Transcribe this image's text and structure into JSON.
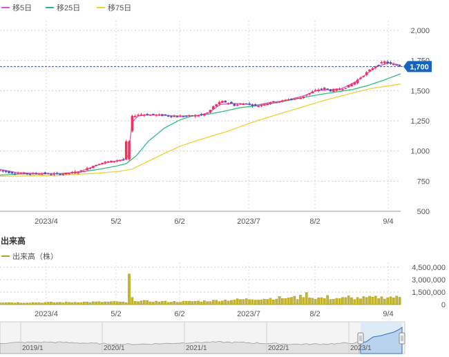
{
  "chart_data": [
    {
      "type": "candlestick",
      "legend": [
        {
          "name": "移5日",
          "color": "#d65ad6"
        },
        {
          "name": "移25日",
          "color": "#2bbf7e"
        },
        {
          "name": "移75日",
          "color": "#f2cf33"
        }
      ],
      "legend_placement": "top-left",
      "x_ticks": [
        "2023/4",
        "5/2",
        "6/2",
        "2023/7",
        "8/2",
        "9/4"
      ],
      "y_ticks": [
        "2,000",
        "1,750",
        "1,500",
        "1,250",
        "1,000",
        "750",
        "500"
      ],
      "ylim": [
        500,
        2000
      ],
      "grid": true,
      "current_price": "1,700",
      "price_path": [
        [
          0,
          840
        ],
        [
          5,
          820
        ],
        [
          10,
          815
        ],
        [
          15,
          812
        ],
        [
          20,
          815
        ],
        [
          25,
          810
        ],
        [
          30,
          808
        ],
        [
          35,
          818
        ],
        [
          38,
          825
        ],
        [
          42,
          840
        ],
        [
          46,
          875
        ],
        [
          50,
          900
        ],
        [
          53,
          910
        ],
        [
          56,
          915
        ],
        [
          59,
          925
        ],
        [
          62,
          930
        ],
        [
          63,
          940
        ],
        [
          64,
          1080
        ],
        [
          65,
          1250
        ],
        [
          66,
          1285
        ],
        [
          68,
          1300
        ],
        [
          71,
          1305
        ],
        [
          74,
          1300
        ],
        [
          78,
          1300
        ],
        [
          82,
          1295
        ],
        [
          86,
          1290
        ],
        [
          90,
          1288
        ],
        [
          94,
          1290
        ],
        [
          98,
          1295
        ],
        [
          101,
          1300
        ],
        [
          104,
          1320
        ],
        [
          106,
          1360
        ],
        [
          108,
          1390
        ],
        [
          111,
          1410
        ],
        [
          114,
          1400
        ],
        [
          117,
          1380
        ],
        [
          120,
          1390
        ],
        [
          123,
          1395
        ],
        [
          126,
          1380
        ],
        [
          129,
          1375
        ],
        [
          132,
          1390
        ],
        [
          135,
          1405
        ],
        [
          138,
          1410
        ],
        [
          141,
          1415
        ],
        [
          144,
          1430
        ],
        [
          147,
          1435
        ],
        [
          150,
          1440
        ],
        [
          153,
          1470
        ],
        [
          156,
          1490
        ],
        [
          159,
          1510
        ],
        [
          162,
          1520
        ],
        [
          165,
          1500
        ],
        [
          168,
          1510
        ],
        [
          171,
          1520
        ],
        [
          174,
          1540
        ],
        [
          177,
          1570
        ],
        [
          180,
          1610
        ],
        [
          183,
          1650
        ],
        [
          186,
          1690
        ],
        [
          189,
          1720
        ],
        [
          192,
          1740
        ],
        [
          195,
          1720
        ],
        [
          198,
          1715
        ],
        [
          200,
          1700
        ]
      ],
      "ma5_path": [
        [
          0,
          848
        ],
        [
          8,
          822
        ],
        [
          16,
          815
        ],
        [
          24,
          813
        ],
        [
          32,
          812
        ],
        [
          40,
          830
        ],
        [
          48,
          880
        ],
        [
          56,
          912
        ],
        [
          62,
          928
        ],
        [
          64,
          960
        ],
        [
          66,
          1240
        ],
        [
          69,
          1290
        ],
        [
          74,
          1300
        ],
        [
          82,
          1296
        ],
        [
          90,
          1290
        ],
        [
          98,
          1293
        ],
        [
          104,
          1315
        ],
        [
          110,
          1385
        ],
        [
          116,
          1395
        ],
        [
          122,
          1390
        ],
        [
          128,
          1380
        ],
        [
          134,
          1400
        ],
        [
          140,
          1412
        ],
        [
          146,
          1432
        ],
        [
          152,
          1460
        ],
        [
          158,
          1500
        ],
        [
          164,
          1508
        ],
        [
          170,
          1515
        ],
        [
          176,
          1560
        ],
        [
          182,
          1625
        ],
        [
          188,
          1700
        ],
        [
          194,
          1730
        ],
        [
          200,
          1712
        ]
      ],
      "ma25_path": [
        [
          0,
          800
        ],
        [
          10,
          810
        ],
        [
          20,
          812
        ],
        [
          30,
          813
        ],
        [
          40,
          825
        ],
        [
          50,
          850
        ],
        [
          58,
          875
        ],
        [
          63,
          895
        ],
        [
          68,
          960
        ],
        [
          74,
          1080
        ],
        [
          82,
          1190
        ],
        [
          90,
          1260
        ],
        [
          96,
          1290
        ],
        [
          104,
          1305
        ],
        [
          112,
          1330
        ],
        [
          120,
          1360
        ],
        [
          128,
          1375
        ],
        [
          136,
          1395
        ],
        [
          144,
          1420
        ],
        [
          152,
          1445
        ],
        [
          160,
          1470
        ],
        [
          168,
          1490
        ],
        [
          176,
          1510
        ],
        [
          184,
          1545
        ],
        [
          192,
          1590
        ],
        [
          200,
          1640
        ]
      ],
      "ma75_path": [
        [
          0,
          790
        ],
        [
          10,
          792
        ],
        [
          20,
          795
        ],
        [
          30,
          800
        ],
        [
          40,
          808
        ],
        [
          50,
          818
        ],
        [
          60,
          832
        ],
        [
          66,
          850
        ],
        [
          74,
          915
        ],
        [
          82,
          980
        ],
        [
          90,
          1040
        ],
        [
          98,
          1085
        ],
        [
          106,
          1125
        ],
        [
          114,
          1165
        ],
        [
          122,
          1215
        ],
        [
          130,
          1260
        ],
        [
          138,
          1300
        ],
        [
          146,
          1340
        ],
        [
          154,
          1380
        ],
        [
          162,
          1420
        ],
        [
          170,
          1455
        ],
        [
          178,
          1490
        ],
        [
          186,
          1520
        ],
        [
          194,
          1540
        ],
        [
          200,
          1555
        ]
      ]
    },
    {
      "type": "bar",
      "title": "出来高",
      "legend": [
        {
          "name": "出来高（株）",
          "color": "#b5a51c"
        }
      ],
      "y_ticks": [
        "4,500,000",
        "3,000,000",
        "1,500,000",
        "0"
      ],
      "ylim": [
        0,
        4500000
      ],
      "x_ticks": [
        "2023/4",
        "5/2",
        "6/2",
        "2023/7",
        "8/2",
        "9/4"
      ],
      "volume_profile": [
        [
          0,
          250000
        ],
        [
          10,
          230000
        ],
        [
          20,
          240000
        ],
        [
          30,
          260000
        ],
        [
          40,
          290000
        ],
        [
          50,
          300000
        ],
        [
          60,
          320000
        ],
        [
          63,
          200000
        ],
        [
          64,
          3700000
        ],
        [
          65,
          1200000
        ],
        [
          66,
          700000
        ],
        [
          68,
          450000
        ],
        [
          75,
          380000
        ],
        [
          85,
          340000
        ],
        [
          95,
          360000
        ],
        [
          105,
          450000
        ],
        [
          115,
          550000
        ],
        [
          125,
          650000
        ],
        [
          133,
          700000
        ],
        [
          140,
          800000
        ],
        [
          148,
          700000
        ],
        [
          153,
          1250000
        ],
        [
          156,
          800000
        ],
        [
          165,
          750000
        ],
        [
          175,
          750000
        ],
        [
          185,
          820000
        ],
        [
          195,
          900000
        ],
        [
          200,
          850000
        ]
      ],
      "spikes": [
        [
          133,
          1150000
        ],
        [
          147,
          1000000
        ],
        [
          164,
          1100000
        ],
        [
          174,
          1050000
        ],
        [
          191,
          950000
        ]
      ]
    }
  ],
  "navigator": {
    "ticks": [
      "2019/1",
      "2020/1",
      "2021/1",
      "2022/1",
      "2023/1"
    ]
  }
}
